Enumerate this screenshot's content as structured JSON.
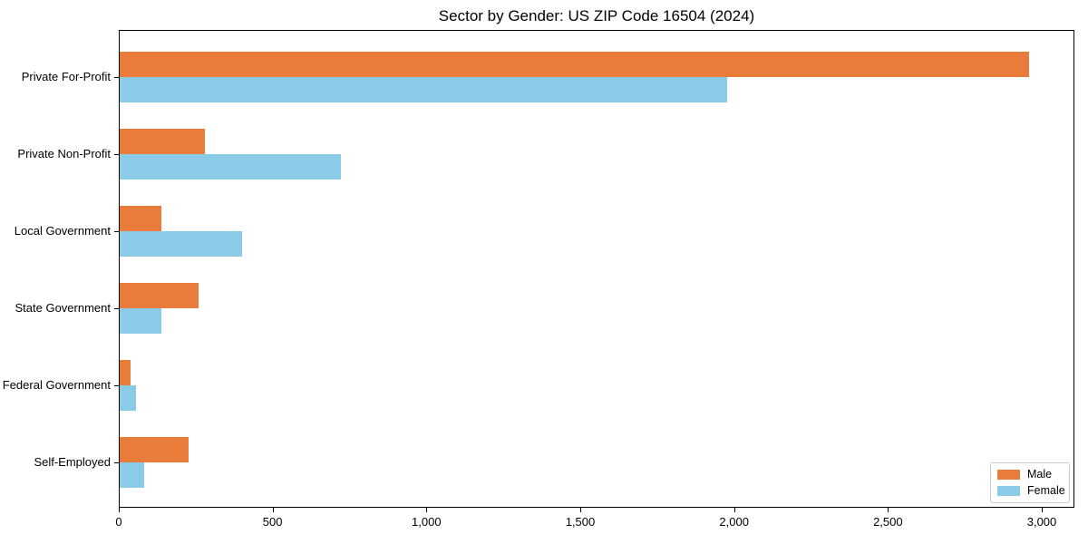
{
  "chart_data": {
    "type": "bar",
    "orientation": "horizontal",
    "title": "Sector by Gender: US ZIP Code 16504 (2024)",
    "categories": [
      "Private For-Profit",
      "Private Non-Profit",
      "Local Government",
      "State Government",
      "Federal Government",
      "Self-Employed"
    ],
    "series": [
      {
        "name": "Male",
        "color": "#E97C3B",
        "values": [
          2958,
          280,
          138,
          260,
          38,
          228
        ]
      },
      {
        "name": "Female",
        "color": "#8ACBE8",
        "values": [
          1976,
          721,
          400,
          138,
          57,
          83
        ]
      }
    ],
    "xlabel": "",
    "ylabel": "",
    "xlim": [
      0,
      3106
    ],
    "xticks": [
      0,
      500,
      1000,
      1500,
      2000,
      2500,
      3000
    ],
    "xtick_labels": [
      "0",
      "500",
      "1,000",
      "1,500",
      "2,000",
      "2,500",
      "3,000"
    ],
    "grid": false,
    "legend": {
      "position": "lower-right",
      "entries": [
        "Male",
        "Female"
      ]
    },
    "axis_color": "#000000",
    "background_color": "#ffffff"
  }
}
